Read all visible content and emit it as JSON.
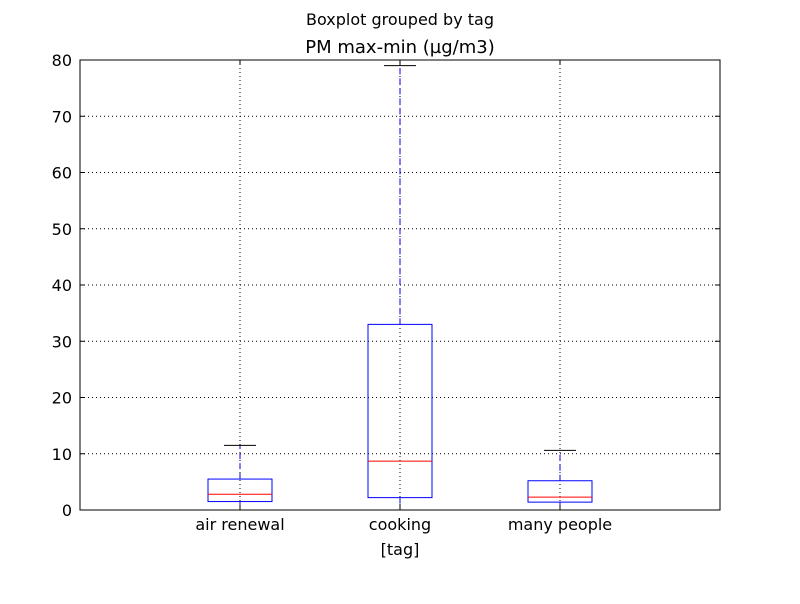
{
  "chart_data": {
    "type": "boxplot",
    "suptitle": "Boxplot grouped by tag",
    "title": "PM max-min (µg/m3)",
    "xlabel": "[tag]",
    "ylabel": "",
    "ylim": [
      0,
      80
    ],
    "yticks": [
      0,
      10,
      20,
      30,
      40,
      50,
      60,
      70,
      80
    ],
    "grid": true,
    "categories": [
      "air renewal",
      "cooking",
      "many people"
    ],
    "boxes": [
      {
        "label": "air renewal",
        "whisker_low": 0,
        "q1": 1.5,
        "median": 2.8,
        "q3": 5.5,
        "whisker_high": 11.5
      },
      {
        "label": "cooking",
        "whisker_low": 0,
        "q1": 2.2,
        "median": 8.7,
        "q3": 33.0,
        "whisker_high": 79.0
      },
      {
        "label": "many people",
        "whisker_low": 0,
        "q1": 1.4,
        "median": 2.3,
        "q3": 5.2,
        "whisker_high": 10.6
      }
    ],
    "colors": {
      "box": "#0000ff",
      "whisker": "#0000ff",
      "median": "#ff0000",
      "cap": "#000000",
      "grid": "#000000",
      "axes": "#000000"
    }
  }
}
